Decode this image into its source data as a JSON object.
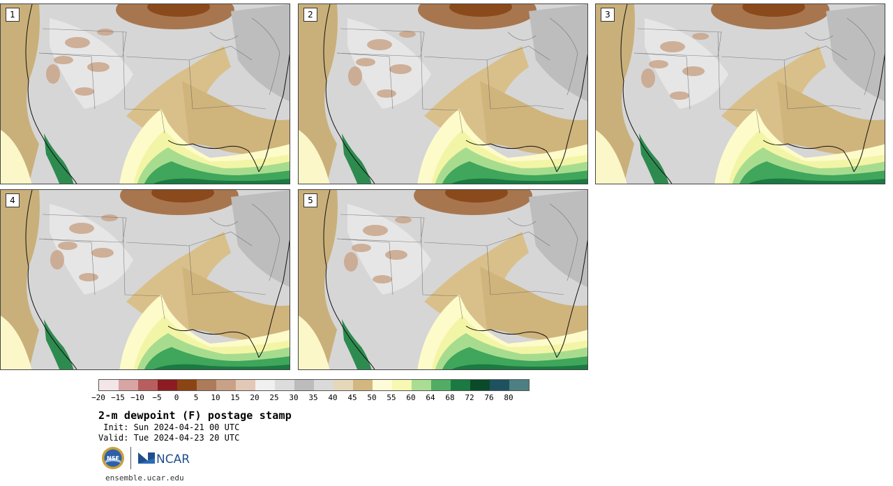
{
  "panels": [
    {
      "label": "1"
    },
    {
      "label": "2"
    },
    {
      "label": "3"
    },
    {
      "label": "4"
    },
    {
      "label": "5"
    }
  ],
  "colorbar": {
    "colors": [
      "#f4e6e6",
      "#d8a4a4",
      "#b85e5e",
      "#8c1c22",
      "#8b4513",
      "#ad7b5a",
      "#c8a186",
      "#e2c9b6",
      "#f0f0f0",
      "#dcdcdc",
      "#bcbcbc",
      "#dadada",
      "#e5d8b9",
      "#d2b880",
      "#fefbd9",
      "#f7f8b2",
      "#a9dd92",
      "#51ad63",
      "#1a7a42",
      "#0a4a28",
      "#1e5261",
      "#4d7f83"
    ],
    "tick_labels": [
      "−20",
      "−15",
      "−10",
      "−5",
      "0",
      "5",
      "10",
      "15",
      "20",
      "25",
      "30",
      "35",
      "40",
      "45",
      "50",
      "55",
      "60",
      "64",
      "68",
      "72",
      "76",
      "80"
    ]
  },
  "title": "2-m dewpoint (F) postage stamp",
  "init": " Init: Sun 2024-04-21 00 UTC",
  "valid": "Valid: Tue 2024-04-23 20 UTC",
  "logos": {
    "nsf_text": "NSF",
    "ncar_text": "NCAR"
  },
  "footer_url": "ensemble.ucar.edu"
}
